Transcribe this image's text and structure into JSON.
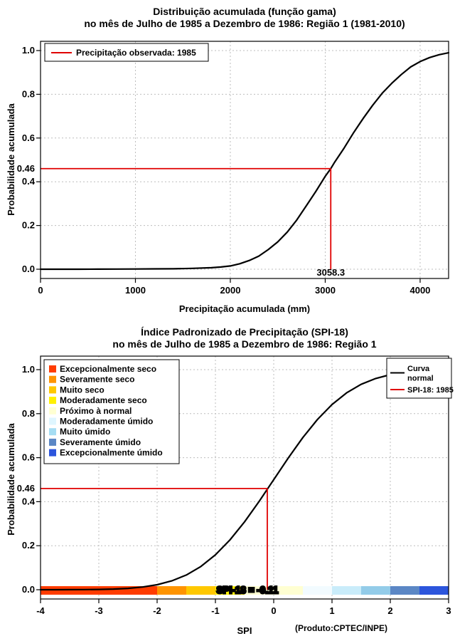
{
  "chart_data": [
    {
      "type": "line",
      "title": "Distribuição acumulada (função gama)",
      "subtitle": "no mês de Julho de 1985 a Dezembro de 1986: Região 1 (1981-2010)",
      "xlabel": "Precipitação acumulada (mm)",
      "ylabel": "Probabilidade acumulada",
      "xlim": [
        0,
        4300
      ],
      "ylim": [
        0,
        1
      ],
      "x_ticks": [
        "0",
        "1000",
        "2000",
        "3000",
        "4000"
      ],
      "y_ticks": [
        "0.0",
        "0.2",
        "0.4",
        "0.6",
        "0.8",
        "1.0"
      ],
      "grid": true,
      "legend": {
        "position": "top-left",
        "items": [
          {
            "label": "Precipitação observada: 1985",
            "color": "#E00000",
            "type": "line"
          }
        ]
      },
      "series": [
        {
          "name": "gamma-cdf",
          "color": "#000000",
          "points": [
            [
              0,
              0
            ],
            [
              200,
              0
            ],
            [
              400,
              0
            ],
            [
              600,
              0.0002
            ],
            [
              800,
              0.0005
            ],
            [
              1000,
              0.001
            ],
            [
              1200,
              0.0015
            ],
            [
              1400,
              0.002
            ],
            [
              1600,
              0.004
            ],
            [
              1800,
              0.007
            ],
            [
              1900,
              0.01
            ],
            [
              2000,
              0.015
            ],
            [
              2100,
              0.025
            ],
            [
              2200,
              0.04
            ],
            [
              2300,
              0.06
            ],
            [
              2400,
              0.09
            ],
            [
              2500,
              0.125
            ],
            [
              2600,
              0.17
            ],
            [
              2700,
              0.225
            ],
            [
              2800,
              0.29
            ],
            [
              2900,
              0.355
            ],
            [
              3000,
              0.425
            ],
            [
              3058.3,
              0.46
            ],
            [
              3100,
              0.49
            ],
            [
              3200,
              0.555
            ],
            [
              3300,
              0.625
            ],
            [
              3400,
              0.69
            ],
            [
              3500,
              0.75
            ],
            [
              3600,
              0.805
            ],
            [
              3700,
              0.85
            ],
            [
              3800,
              0.89
            ],
            [
              3900,
              0.925
            ],
            [
              4000,
              0.95
            ],
            [
              4100,
              0.968
            ],
            [
              4200,
              0.981
            ],
            [
              4300,
              0.99
            ]
          ]
        }
      ],
      "crosshair": {
        "x": 3058.3,
        "y": 0.46,
        "x_label": "3058.3",
        "y_label": "0.46",
        "color": "#E00000"
      }
    },
    {
      "type": "line",
      "title": "Índice Padronizado de Precipitação (SPI-18)",
      "subtitle": "no mês de Julho de 1985 a Dezembro de 1986: Região 1",
      "xlabel": "SPI",
      "ylabel": "Probabilidade acumulada",
      "footnote": "(Produto:CPTEC/INPE)",
      "xlim": [
        -4,
        3
      ],
      "ylim": [
        0,
        1
      ],
      "x_ticks": [
        "-4",
        "-3",
        "-2",
        "-1",
        "0",
        "1",
        "2",
        "3"
      ],
      "y_ticks": [
        "0.0",
        "0.2",
        "0.4",
        "0.6",
        "0.8",
        "1.0"
      ],
      "grid": true,
      "category_legend": {
        "items": [
          {
            "label": "Excepcionalmente seco",
            "color": "#FF3C00"
          },
          {
            "label": "Severamente seco",
            "color": "#FF9400"
          },
          {
            "label": "Muito seco",
            "color": "#FFC800"
          },
          {
            "label": "Moderadamente seco",
            "color": "#FFF000"
          },
          {
            "label": "Próximo à normal",
            "color": "#FFFFD2"
          },
          {
            "label": "Moderadamente úmido",
            "color": "#DFF6FF"
          },
          {
            "label": "Muito úmido",
            "color": "#A5DDF3"
          },
          {
            "label": "Severamente úmido",
            "color": "#5B87C5"
          },
          {
            "label": "Excepcionalmente úmido",
            "color": "#2C55DC"
          }
        ]
      },
      "legend": {
        "position": "top-right",
        "items": [
          {
            "label": "Curva normal",
            "lines": [
              "Curva",
              "normal"
            ],
            "color": "#000000",
            "type": "line"
          },
          {
            "label": "SPI-18: 1985",
            "lines": [
              "SPI-18: 1985"
            ],
            "color": "#E00000",
            "type": "line"
          }
        ]
      },
      "series": [
        {
          "name": "normal-cdf",
          "color": "#000000",
          "points": [
            [
              -4,
              0.0
            ],
            [
              -3.75,
              0.0001
            ],
            [
              -3.5,
              0.0002
            ],
            [
              -3.25,
              0.0006
            ],
            [
              -3,
              0.0013
            ],
            [
              -2.75,
              0.003
            ],
            [
              -2.5,
              0.0062
            ],
            [
              -2.25,
              0.0122
            ],
            [
              -2,
              0.0228
            ],
            [
              -1.75,
              0.0401
            ],
            [
              -1.5,
              0.0668
            ],
            [
              -1.25,
              0.1056
            ],
            [
              -1,
              0.1587
            ],
            [
              -0.75,
              0.2266
            ],
            [
              -0.5,
              0.3085
            ],
            [
              -0.25,
              0.4013
            ],
            [
              0,
              0.5
            ],
            [
              0.25,
              0.5987
            ],
            [
              0.5,
              0.6915
            ],
            [
              0.75,
              0.7734
            ],
            [
              1,
              0.8413
            ],
            [
              1.25,
              0.8944
            ],
            [
              1.5,
              0.9332
            ],
            [
              1.75,
              0.9599
            ],
            [
              2,
              0.9772
            ],
            [
              2.25,
              0.9878
            ],
            [
              2.5,
              0.9938
            ],
            [
              2.75,
              0.997
            ],
            [
              3,
              0.9987
            ]
          ]
        }
      ],
      "spi_bar": {
        "segments": [
          {
            "from": -4,
            "to": -2,
            "color": "#FF3C00"
          },
          {
            "from": -2,
            "to": -1.5,
            "color": "#FF9400"
          },
          {
            "from": -1.5,
            "to": -1,
            "color": "#FFC800"
          },
          {
            "from": -1,
            "to": -0.5,
            "color": "#FFF000"
          },
          {
            "from": -0.5,
            "to": 0.5,
            "color": "#FFFFD2"
          },
          {
            "from": 0.5,
            "to": 1,
            "color": "#F2FBFF"
          },
          {
            "from": 1,
            "to": 1.5,
            "color": "#C9ECFA"
          },
          {
            "from": 1.5,
            "to": 2,
            "color": "#93CCE9"
          },
          {
            "from": 2,
            "to": 2.5,
            "color": "#5B87C5"
          },
          {
            "from": 2.5,
            "to": 3,
            "color": "#2C55DC"
          }
        ]
      },
      "crosshair": {
        "x": -0.11,
        "y": 0.46,
        "y_label": "0.46",
        "label": "SPI-18 = -0.11",
        "color": "#E00000"
      }
    }
  ]
}
